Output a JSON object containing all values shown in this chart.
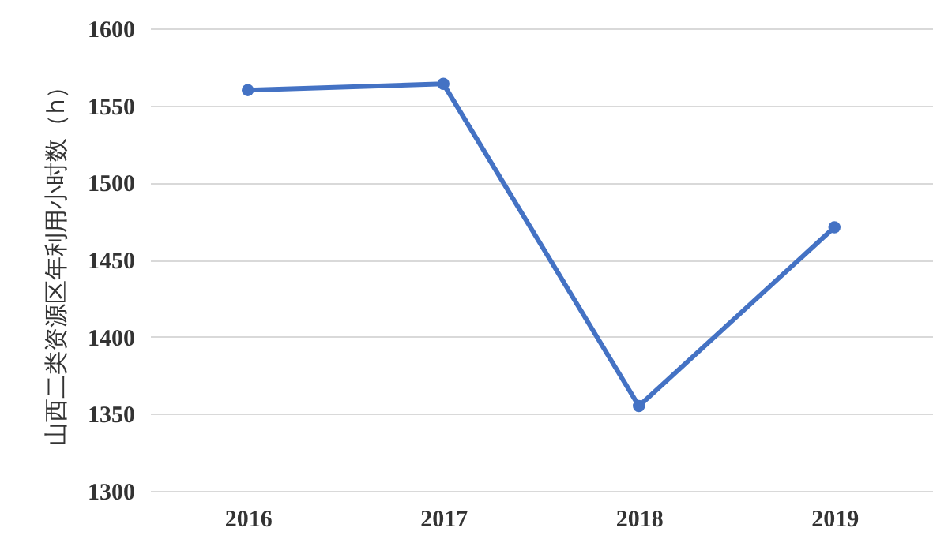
{
  "chart_data": {
    "type": "line",
    "ylabel": "山西二类资源区年利用小时数（h）",
    "categories": [
      "2016",
      "2017",
      "2018",
      "2019"
    ],
    "series": [
      {
        "color": "#4472c4",
        "values": [
          1560,
          1564,
          1355,
          1471
        ]
      }
    ],
    "ylim": [
      1300,
      1600
    ],
    "yticks": [
      1300,
      1350,
      1400,
      1450,
      1500,
      1550,
      1600
    ],
    "grid": "y",
    "marker": "circle",
    "line_style": "solid"
  }
}
